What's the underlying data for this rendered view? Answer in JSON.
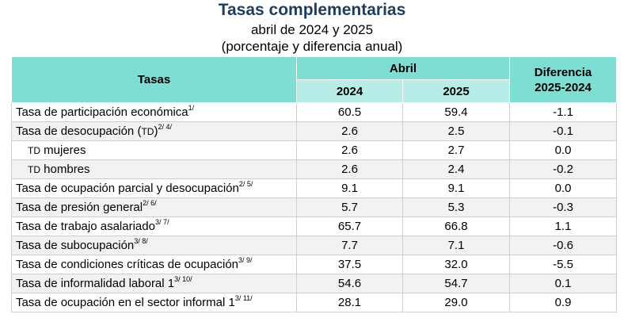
{
  "header": {
    "title": "Tasas complementarias",
    "subtitle": "abril de 2024 y 2025",
    "subtitle2": "(porcentaje y diferencia anual)"
  },
  "table": {
    "col_tasas": "Tasas",
    "col_abril": "Abril",
    "col_2024": "2024",
    "col_2025": "2025",
    "col_diff_line1": "Diferencia",
    "col_diff_line2": "2025-2024",
    "rows": [
      {
        "name": "Tasa de participación económica",
        "sup": "1/",
        "v2024": "60.5",
        "v2025": "59.4",
        "diff": "-1.1"
      },
      {
        "name": "Tasa de desocupación (",
        "abbr": "TD",
        "tail": ")",
        "sup": "2/ 4/",
        "v2024": "2.6",
        "v2025": "2.5",
        "diff": "-0.1"
      },
      {
        "abbr": "TD",
        "name": " mujeres",
        "sup": "",
        "v2024": "2.6",
        "v2025": "2.7",
        "diff": "0.0"
      },
      {
        "abbr": "TD",
        "name": " hombres",
        "sup": "",
        "v2024": "2.6",
        "v2025": "2.4",
        "diff": "-0.2"
      },
      {
        "name": "Tasa de ocupación parcial y desocupación",
        "sup": "2/ 5/",
        "v2024": "9.1",
        "v2025": "9.1",
        "diff": "0.0"
      },
      {
        "name": "Tasa de presión general",
        "sup": "2/ 6/",
        "v2024": "5.7",
        "v2025": "5.3",
        "diff": "-0.3"
      },
      {
        "name": "Tasa de trabajo asalariado",
        "sup": "3/ 7/",
        "v2024": "65.7",
        "v2025": "66.8",
        "diff": "1.1"
      },
      {
        "name": "Tasa de subocupación",
        "sup": "3/ 8/",
        "v2024": "7.7",
        "v2025": "7.1",
        "diff": "-0.6"
      },
      {
        "name": "Tasa de condiciones críticas de ocupación",
        "sup": "3/ 9/",
        "v2024": "37.5",
        "v2025": "32.0",
        "diff": "-5.5"
      },
      {
        "name": "Tasa de informalidad laboral 1",
        "sup": "3/ 10/",
        "v2024": "54.6",
        "v2025": "54.7",
        "diff": "0.1"
      },
      {
        "name": "Tasa de ocupación en el sector informal 1",
        "sup": "3/ 11/",
        "v2024": "28.1",
        "v2025": "29.0",
        "diff": "0.9"
      }
    ]
  }
}
